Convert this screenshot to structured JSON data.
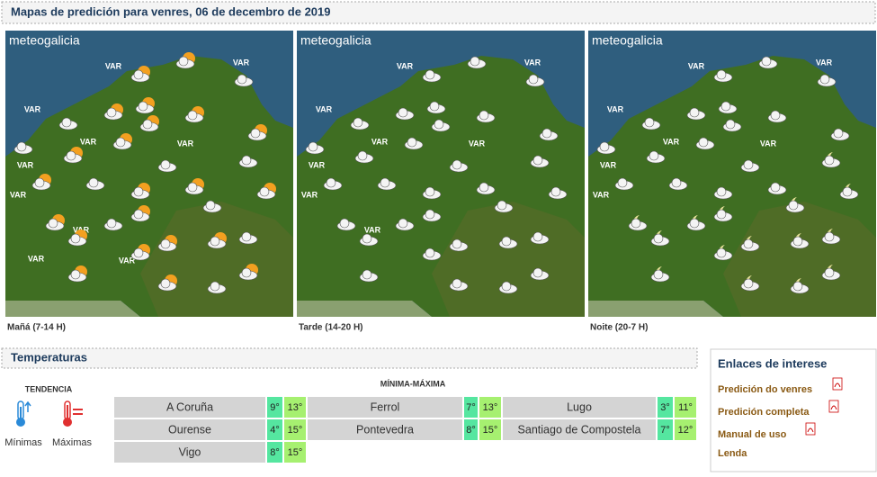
{
  "header": {
    "title": "Mapas de predición para venres, 06 de decembro de 2019"
  },
  "maps": [
    {
      "brand": "meteogalicia",
      "caption": "Mañá (7-14 H)",
      "var_labels": [
        "VAR",
        "VAR",
        "VAR",
        "VAR",
        "VAR",
        "VAR",
        "VAR",
        "VAR",
        "VAR",
        "VAR"
      ]
    },
    {
      "brand": "meteogalicia",
      "caption": "Tarde (14-20 H)",
      "var_labels": [
        "VAR",
        "VAR",
        "VAR",
        "VAR",
        "VAR",
        "VAR",
        "VAR",
        "VAR"
      ]
    },
    {
      "brand": "meteogalicia",
      "caption": "Noite (20-7 H)",
      "var_labels": [
        "VAR",
        "VAR",
        "VAR",
        "VAR",
        "VAR",
        "VAR",
        "VAR"
      ]
    }
  ],
  "temperatures": {
    "title": "Temperaturas",
    "trend_label": "TENDENCIA",
    "min_label": "Mínimas",
    "max_label": "Máximas",
    "range_label": "MÍNIMA-MÁXIMA",
    "rows": [
      [
        {
          "city": "A Coruña",
          "min": "9°",
          "max": "13°"
        },
        {
          "city": "Ferrol",
          "min": "7°",
          "max": "13°"
        },
        {
          "city": "Lugo",
          "min": "3°",
          "max": "11°"
        }
      ],
      [
        {
          "city": "Ourense",
          "min": "4°",
          "max": "15°"
        },
        {
          "city": "Pontevedra",
          "min": "8°",
          "max": "15°"
        },
        {
          "city": "Santiago de Compostela",
          "min": "7°",
          "max": "12°"
        }
      ],
      [
        {
          "city": "Vigo",
          "min": "8°",
          "max": "15°"
        }
      ]
    ]
  },
  "links": {
    "title": "Enlaces de interese",
    "items": [
      "Predición do venres",
      "Predición completa",
      "Manual de uso",
      "Lenda"
    ]
  }
}
